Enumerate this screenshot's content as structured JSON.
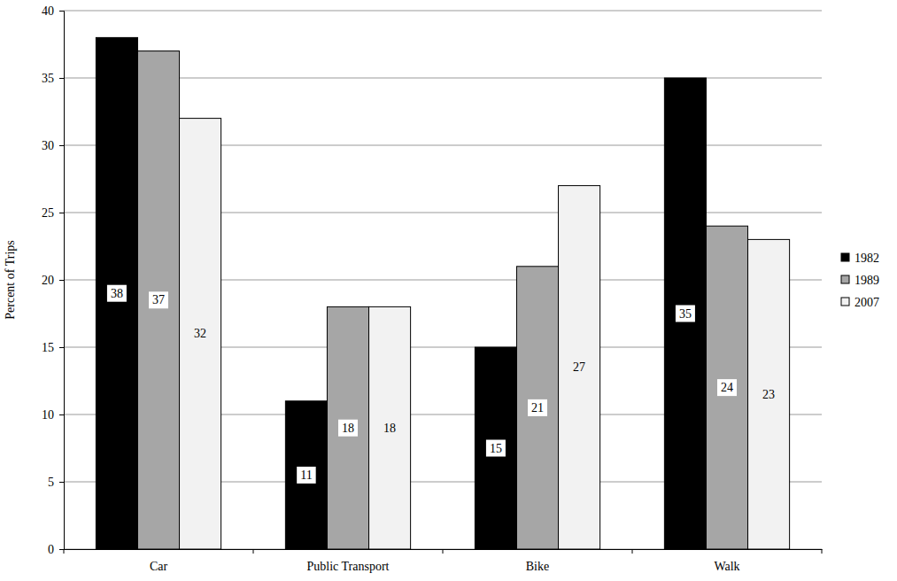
{
  "chart_data": {
    "type": "bar",
    "y_label": "Percent of Trips",
    "categories": [
      "Car",
      "Public Transport",
      "Bike",
      "Walk"
    ],
    "series": [
      {
        "name": "1982",
        "color": "#000000",
        "values": [
          38,
          11,
          15,
          35
        ]
      },
      {
        "name": "1989",
        "color": "#a6a6a6",
        "values": [
          37,
          18,
          21,
          24
        ]
      },
      {
        "name": "2007",
        "color": "#f2f2f2",
        "values": [
          32,
          18,
          27,
          23
        ]
      }
    ],
    "ylim": [
      0,
      40
    ],
    "yticks": [
      0,
      5,
      10,
      15,
      20,
      25,
      30,
      35,
      40
    ],
    "grid": true,
    "legend": "right",
    "data_labels": true
  }
}
